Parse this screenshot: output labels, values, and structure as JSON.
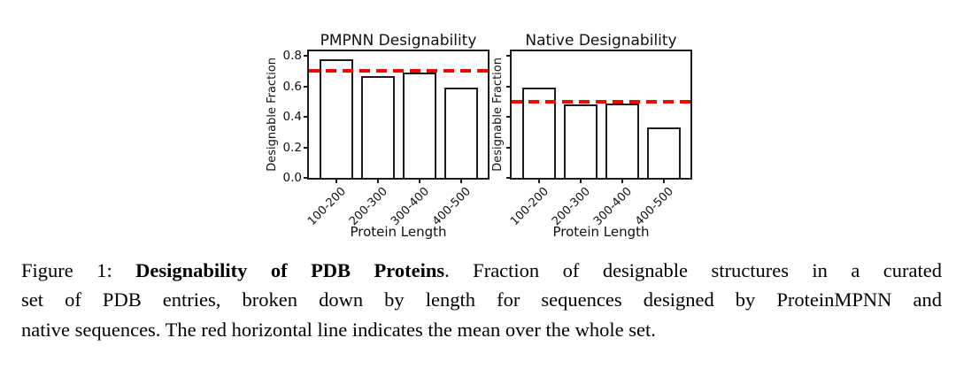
{
  "figure": {
    "mean_line_color": "#ff0000",
    "bar_fill": "#ffffff",
    "bar_edge": "#1c1c1c"
  },
  "chart_data": [
    {
      "type": "bar",
      "title": "PMPNN Designability",
      "xlabel": "Protein Length",
      "ylabel": "Designable Fraction",
      "categories": [
        "100-200",
        "200-300",
        "300-400",
        "400-500"
      ],
      "values": [
        0.78,
        0.67,
        0.69,
        0.59
      ],
      "mean_line": 0.7,
      "mean_line_color": "#ff0000",
      "mean_line_style": "dashed",
      "yticks": [
        0.8,
        0.6,
        0.4,
        0.2,
        0.0
      ],
      "ytick_labels_visible": true,
      "ylim": [
        0,
        0.83
      ],
      "grid": false,
      "legend": "none"
    },
    {
      "type": "bar",
      "title": "Native Designability",
      "xlabel": "Protein Length",
      "ylabel": "Designable Fraction",
      "categories": [
        "100-200",
        "200-300",
        "300-400",
        "400-500"
      ],
      "values": [
        0.59,
        0.48,
        0.49,
        0.33
      ],
      "mean_line": 0.5,
      "mean_line_color": "#ff0000",
      "mean_line_style": "dashed",
      "yticks": [
        0.8,
        0.6,
        0.4,
        0.2,
        0.0
      ],
      "ytick_labels_visible": false,
      "ylim": [
        0,
        0.83
      ],
      "grid": false,
      "legend": "none"
    }
  ],
  "caption": {
    "lines": [
      {
        "justify": true,
        "segments": [
          {
            "text": "Figure 1: ",
            "bold": false
          },
          {
            "text": "Designability of PDB Proteins",
            "bold": true
          },
          {
            "text": ". Fraction of designable structures in a curated",
            "bold": false
          }
        ]
      },
      {
        "justify": true,
        "segments": [
          {
            "text": "set of PDB entries, broken down by length for sequences designed by ProteinMPNN and",
            "bold": false
          }
        ]
      },
      {
        "justify": false,
        "segments": [
          {
            "text": "native sequences. The red horizontal line indicates the mean over the whole set.",
            "bold": false
          }
        ]
      }
    ]
  }
}
